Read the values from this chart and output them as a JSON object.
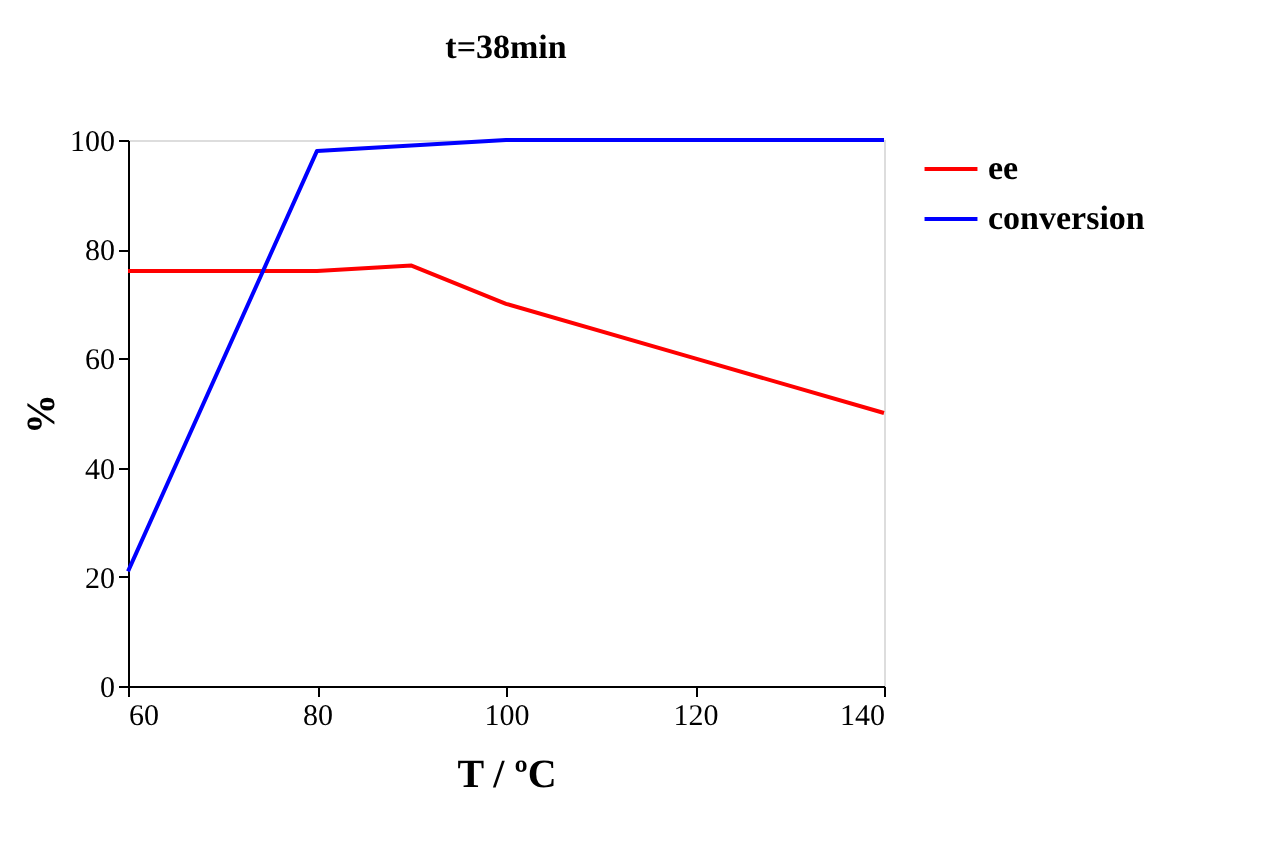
{
  "chart_data": {
    "type": "line",
    "title": "t=38min",
    "xlabel": "T / ºC",
    "ylabel": "%",
    "x": [
      60,
      80,
      90,
      100,
      120,
      140
    ],
    "series": [
      {
        "name": "ee",
        "color": "#ff0000",
        "values": [
          76,
          76,
          77,
          70,
          60,
          50
        ]
      },
      {
        "name": "conversion",
        "color": "#0000ff",
        "values": [
          21,
          98,
          99,
          100,
          100,
          100
        ]
      }
    ],
    "xlim": [
      60,
      140
    ],
    "xticks": [
      60,
      80,
      100,
      120,
      140
    ],
    "ylim": [
      0,
      100
    ],
    "yticks": [
      0,
      20,
      40,
      60,
      80,
      100
    ],
    "grid": false,
    "legend": "right",
    "marker": "none",
    "line_style": "solid"
  }
}
